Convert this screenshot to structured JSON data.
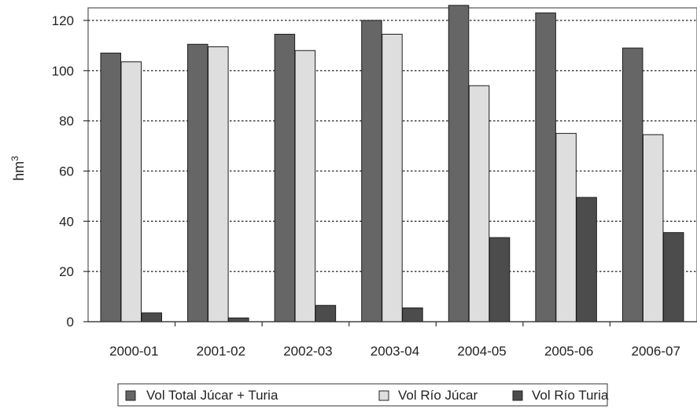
{
  "chart_data": {
    "type": "bar",
    "title": "",
    "xlabel": "",
    "ylabel": "hm",
    "ylabel_superscript": "3",
    "ylim": [
      0,
      125
    ],
    "yticks": [
      0,
      20,
      40,
      60,
      80,
      100,
      120
    ],
    "grid": "horizontal dotted",
    "legend_position": "bottom",
    "categories": [
      "2000-01",
      "2001-02",
      "2002-03",
      "2003-04",
      "2004-05",
      "2005-06",
      "2006-07"
    ],
    "series": [
      {
        "name": "Vol Total Júcar + Turia",
        "color": "#666666",
        "values": [
          107,
          110.5,
          114.5,
          120,
          126,
          123,
          109
        ]
      },
      {
        "name": "Vol Río Júcar",
        "color": "#dedede",
        "values": [
          103.5,
          109.5,
          108,
          114.5,
          94,
          75,
          74.5
        ]
      },
      {
        "name": "Vol Río Turia",
        "color": "#4c4c4c",
        "values": [
          3.5,
          1.5,
          6.5,
          5.5,
          33.5,
          49.5,
          35.5
        ]
      }
    ]
  }
}
